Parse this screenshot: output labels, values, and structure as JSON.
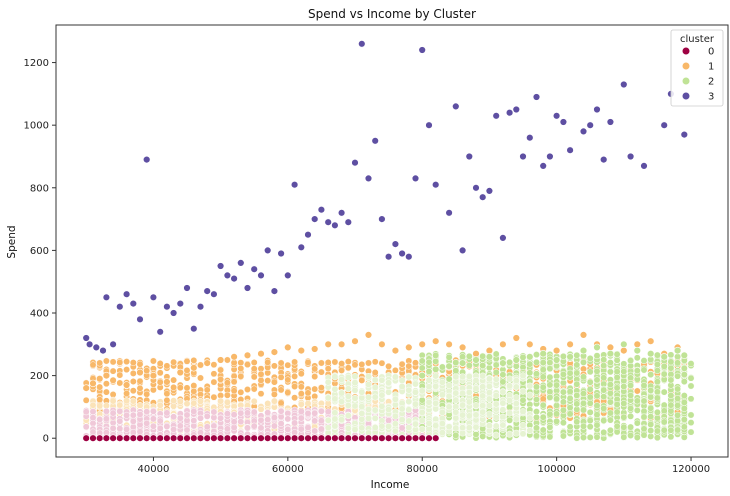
{
  "chart_data": {
    "type": "scatter",
    "title": "Spend vs Income by Cluster",
    "xlabel": "Income",
    "ylabel": "Spend",
    "xlim": [
      25500,
      125500
    ],
    "ylim": [
      -60,
      1320
    ],
    "xticks": [
      40000,
      60000,
      80000,
      100000,
      120000
    ],
    "yticks": [
      0,
      200,
      400,
      600,
      800,
      1000,
      1200
    ],
    "grid": false,
    "legend": {
      "title": "cluster",
      "placement": "top-right",
      "entries": [
        {
          "label": "0",
          "color": "#9e0142"
        },
        {
          "label": "1",
          "color": "#f8b869"
        },
        {
          "label": "2",
          "color": "#c0e396"
        },
        {
          "label": "3",
          "color": "#5e4fa2"
        }
      ]
    },
    "series": [
      {
        "name": "0",
        "color": "#9e0142",
        "x": [
          30000,
          31000,
          32000,
          33000,
          34000,
          35000,
          36000,
          37000,
          38000,
          39000,
          40000,
          41000,
          42000,
          43000,
          44000,
          45000,
          46000,
          47000,
          48000,
          49000,
          50000,
          51000,
          52000,
          53000,
          54000,
          55000,
          56000,
          57000,
          58000,
          59000,
          60000,
          61000,
          62000,
          63000,
          64000,
          65000,
          66000,
          67000,
          68000,
          69000,
          70000,
          71000,
          72000,
          73000,
          74000,
          75000,
          76000,
          77000,
          78000,
          79000,
          80000,
          81000,
          82000
        ],
        "y": [
          0,
          0,
          0,
          0,
          0,
          0,
          0,
          0,
          0,
          0,
          0,
          0,
          0,
          0,
          0,
          0,
          0,
          0,
          0,
          0,
          0,
          0,
          0,
          0,
          0,
          0,
          0,
          0,
          0,
          0,
          0,
          0,
          0,
          0,
          0,
          0,
          0,
          0,
          0,
          0,
          0,
          0,
          0,
          0,
          0,
          0,
          0,
          0,
          0,
          0,
          0,
          0,
          0
        ]
      },
      {
        "name": "1",
        "color": "#f8b869",
        "x": [
          30000,
          31000,
          32000,
          33000,
          34000,
          36000,
          38000,
          40000,
          42000,
          44000,
          46000,
          48000,
          50000,
          52000,
          54000,
          56000,
          58000,
          60000,
          62000,
          64000,
          66000,
          68000,
          70000,
          72000,
          74000,
          76000,
          78000,
          80000,
          82000,
          84000,
          86000,
          88000,
          90000,
          92000,
          94000,
          96000,
          98000,
          100000,
          102000,
          104000,
          106000,
          108000,
          110000,
          112000,
          114000,
          116000,
          118000
        ],
        "y": [
          160,
          175,
          190,
          200,
          185,
          170,
          210,
          200,
          180,
          210,
          225,
          240,
          250,
          260,
          265,
          270,
          275,
          290,
          280,
          285,
          300,
          300,
          310,
          330,
          300,
          280,
          290,
          300,
          310,
          300,
          290,
          270,
          280,
          300,
          320,
          300,
          285,
          280,
          300,
          330,
          300,
          290,
          280,
          300,
          310,
          270,
          290
        ]
      },
      {
        "name": "2",
        "color": "#c0e396",
        "x": [
          80000,
          82000,
          84000,
          86000,
          88000,
          90000,
          92000,
          94000,
          96000,
          98000,
          100000,
          102000,
          104000,
          106000,
          108000,
          110000,
          112000,
          114000,
          116000,
          118000,
          119000
        ],
        "y": [
          200,
          220,
          230,
          240,
          250,
          260,
          240,
          250,
          260,
          270,
          250,
          260,
          280,
          290,
          270,
          300,
          280,
          270,
          260,
          280,
          265
        ]
      },
      {
        "name": "3",
        "color": "#5e4fa2",
        "x": [
          30000,
          30500,
          31500,
          32500,
          33000,
          34000,
          35000,
          36000,
          37000,
          38000,
          39000,
          40000,
          41000,
          42000,
          43000,
          44000,
          45000,
          46000,
          47000,
          48000,
          49000,
          50000,
          51000,
          52000,
          53000,
          54000,
          55000,
          56000,
          57000,
          58000,
          59000,
          60000,
          61000,
          62000,
          63000,
          64000,
          65000,
          66000,
          67000,
          68000,
          69000,
          70000,
          71000,
          72000,
          73000,
          74000,
          75000,
          76000,
          77000,
          78000,
          79000,
          80000,
          81000,
          82000,
          84000,
          85000,
          86000,
          87000,
          88000,
          89000,
          90000,
          91000,
          92000,
          93000,
          94000,
          95000,
          96000,
          97000,
          98000,
          99000,
          100000,
          101000,
          102000,
          104000,
          105000,
          106000,
          107000,
          108000,
          110000,
          111000,
          113000,
          116000,
          117000,
          119000
        ],
        "y": [
          320,
          300,
          290,
          280,
          450,
          300,
          420,
          460,
          430,
          380,
          890,
          450,
          340,
          420,
          400,
          430,
          480,
          350,
          420,
          470,
          460,
          550,
          520,
          510,
          560,
          480,
          540,
          520,
          600,
          470,
          590,
          520,
          810,
          610,
          650,
          700,
          730,
          690,
          680,
          720,
          690,
          880,
          1260,
          830,
          950,
          700,
          580,
          620,
          590,
          580,
          830,
          1240,
          1000,
          810,
          720,
          1060,
          600,
          900,
          800,
          770,
          790,
          1030,
          640,
          1040,
          1050,
          900,
          960,
          1090,
          870,
          900,
          1030,
          1010,
          920,
          980,
          1000,
          1050,
          890,
          1010,
          1130,
          900,
          870,
          1000,
          1100,
          970
        ]
      }
    ],
    "cloud_bands": [
      {
        "series": "1",
        "xrange": [
          30000,
          119000
        ],
        "yrange": [
          60,
          250
        ],
        "density": 950,
        "color": "#f8b869"
      },
      {
        "series": "1",
        "xrange": [
          30000,
          80000
        ],
        "yrange": [
          10,
          120
        ],
        "density": 500,
        "color": "#fbe3b8"
      },
      {
        "series": "0",
        "xrange": [
          30000,
          80000
        ],
        "yrange": [
          5,
          90
        ],
        "density": 600,
        "color": "#f0c8d8"
      },
      {
        "series": "2",
        "xrange": [
          80000,
          120000
        ],
        "yrange": [
          0,
          270
        ],
        "density": 1200,
        "color": "#c0e396"
      },
      {
        "series": "2",
        "xrange": [
          66000,
          96000
        ],
        "yrange": [
          10,
          200
        ],
        "density": 450,
        "color": "#e6f3d2"
      }
    ]
  }
}
